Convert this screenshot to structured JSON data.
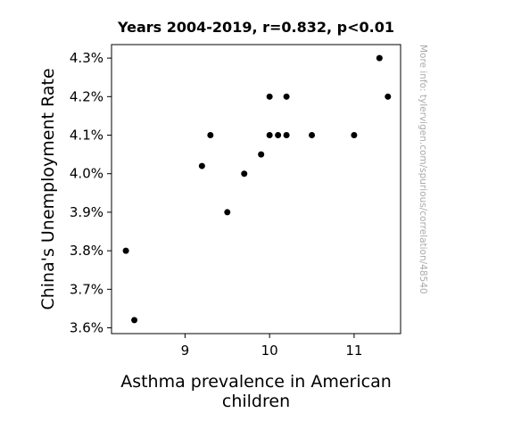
{
  "chart_data": {
    "type": "scatter",
    "title": "Years 2004-2019, r=0.832, p<0.01",
    "xlabel": "Asthma prevalence in American children",
    "ylabel": "China's Unemployment Rate",
    "watermark": "More info: tylervigen.com/spurious/correlation/48540",
    "xlim": [
      8.13,
      11.55
    ],
    "ylim": [
      3.585,
      4.335
    ],
    "x_ticks": [
      {
        "value": 9,
        "label": "9"
      },
      {
        "value": 10,
        "label": "10"
      },
      {
        "value": 11,
        "label": "11"
      }
    ],
    "y_ticks": [
      {
        "value": 3.6,
        "label": "3.6%"
      },
      {
        "value": 3.7,
        "label": "3.7%"
      },
      {
        "value": 3.8,
        "label": "3.8%"
      },
      {
        "value": 3.9,
        "label": "3.9%"
      },
      {
        "value": 4.0,
        "label": "4.0%"
      },
      {
        "value": 4.1,
        "label": "4.1%"
      },
      {
        "value": 4.2,
        "label": "4.2%"
      },
      {
        "value": 4.3,
        "label": "4.3%"
      }
    ],
    "grid": false,
    "marker_color": "#000000",
    "points": [
      {
        "x": 8.3,
        "y": 3.8
      },
      {
        "x": 8.4,
        "y": 3.62
      },
      {
        "x": 9.2,
        "y": 4.02
      },
      {
        "x": 9.3,
        "y": 4.1
      },
      {
        "x": 9.5,
        "y": 3.9
      },
      {
        "x": 9.7,
        "y": 4.0
      },
      {
        "x": 9.9,
        "y": 4.05
      },
      {
        "x": 10.0,
        "y": 4.1
      },
      {
        "x": 10.0,
        "y": 4.2
      },
      {
        "x": 10.1,
        "y": 4.1
      },
      {
        "x": 10.2,
        "y": 4.1
      },
      {
        "x": 10.2,
        "y": 4.2
      },
      {
        "x": 10.5,
        "y": 4.1
      },
      {
        "x": 11.0,
        "y": 4.1
      },
      {
        "x": 11.3,
        "y": 4.3
      },
      {
        "x": 11.4,
        "y": 4.2
      }
    ]
  }
}
